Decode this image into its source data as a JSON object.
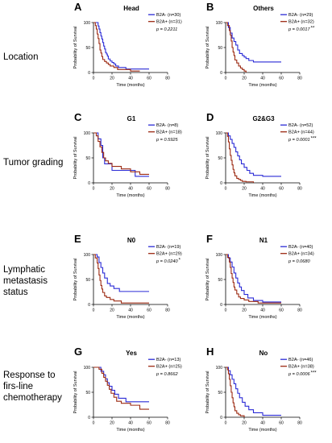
{
  "colors": {
    "negative": "#2b2bd6",
    "positive": "#9c2a12",
    "axis": "#000000"
  },
  "row_labels": [
    {
      "text": "Location"
    },
    {
      "text": "Tumor grading"
    },
    {
      "text": "Lymphatic metastasis status"
    },
    {
      "text": "Response to firs-line chemotherapy"
    }
  ],
  "chart_data": [
    {
      "panel": "A",
      "type": "line",
      "title": "Head",
      "xlabel": "Time (months)",
      "ylabel": "Probability of Survival",
      "xlim": [
        0,
        80
      ],
      "ylim": [
        0,
        100
      ],
      "xticks": [
        "0",
        "20",
        "40",
        "60",
        "80"
      ],
      "yticks": [
        "0",
        "50",
        "100"
      ],
      "p_value": "p = 0.2211",
      "significance": "",
      "series": [
        {
          "name": "B2A- (n=30)",
          "color": "#2b2bd6",
          "x": [
            0,
            3,
            5,
            6,
            7,
            8,
            9,
            10,
            11,
            12,
            13,
            14,
            15,
            16,
            18,
            20,
            22,
            24,
            27,
            30,
            35,
            40,
            50,
            60
          ],
          "y": [
            100,
            100,
            93,
            87,
            80,
            73,
            67,
            60,
            53,
            47,
            40,
            37,
            33,
            27,
            23,
            20,
            17,
            13,
            10,
            10,
            7,
            7,
            7,
            7
          ]
        },
        {
          "name": "B2A+ (n=31)",
          "color": "#9c2a12",
          "x": [
            0,
            2,
            3,
            4,
            5,
            6,
            7,
            8,
            9,
            10,
            12,
            14,
            16,
            18,
            22,
            26,
            30,
            40,
            50
          ],
          "y": [
            100,
            94,
            87,
            77,
            68,
            58,
            45,
            39,
            32,
            26,
            22,
            19,
            16,
            13,
            10,
            6,
            6,
            3,
            3
          ]
        }
      ]
    },
    {
      "panel": "B",
      "type": "line",
      "title": "Others",
      "xlabel": "Time (months)",
      "ylabel": "Probability of Survival",
      "xlim": [
        0,
        80
      ],
      "ylim": [
        0,
        100
      ],
      "xticks": [
        "0",
        "20",
        "40",
        "60",
        "80"
      ],
      "yticks": [
        "0",
        "50",
        "100"
      ],
      "p_value": "p = 0.0017",
      "significance": "**",
      "series": [
        {
          "name": "B2A- (n=29)",
          "color": "#2b2bd6",
          "x": [
            0,
            3,
            5,
            7,
            9,
            11,
            13,
            15,
            18,
            20,
            22,
            25,
            30,
            60
          ],
          "y": [
            100,
            90,
            79,
            69,
            62,
            55,
            45,
            38,
            34,
            31,
            28,
            24,
            21,
            21
          ]
        },
        {
          "name": "B2A+ (n=32)",
          "color": "#9c2a12",
          "x": [
            0,
            2,
            4,
            5,
            6,
            7,
            8,
            9,
            10,
            12,
            14,
            16,
            18,
            20,
            22
          ],
          "y": [
            100,
            94,
            84,
            75,
            63,
            50,
            41,
            34,
            25,
            19,
            13,
            9,
            6,
            3,
            0
          ]
        }
      ]
    },
    {
      "panel": "C",
      "type": "line",
      "title": "G1",
      "xlabel": "Time (months)",
      "ylabel": "Probability of Survival",
      "xlim": [
        0,
        80
      ],
      "ylim": [
        0,
        100
      ],
      "xticks": [
        "0",
        "20",
        "40",
        "60",
        "80"
      ],
      "yticks": [
        "0",
        "50",
        "100"
      ],
      "p_value": "p = 0.5925",
      "significance": "",
      "series": [
        {
          "name": "B2A- (n=8)",
          "color": "#2b2bd6",
          "x": [
            0,
            5,
            8,
            10,
            12,
            15,
            20,
            30,
            45,
            60
          ],
          "y": [
            100,
            88,
            75,
            50,
            38,
            38,
            25,
            25,
            13,
            13
          ]
        },
        {
          "name": "B2A+ (n=18)",
          "color": "#9c2a12",
          "x": [
            0,
            3,
            5,
            7,
            9,
            11,
            13,
            16,
            20,
            25,
            30,
            40,
            50,
            60
          ],
          "y": [
            100,
            94,
            83,
            72,
            61,
            50,
            44,
            39,
            33,
            33,
            28,
            22,
            17,
            17
          ]
        }
      ]
    },
    {
      "panel": "D",
      "type": "line",
      "title": "G2&G3",
      "xlabel": "Time (months)",
      "ylabel": "Probability of Survival",
      "xlim": [
        0,
        80
      ],
      "ylim": [
        0,
        100
      ],
      "xticks": [
        "0",
        "20",
        "40",
        "60",
        "80"
      ],
      "yticks": [
        "0",
        "50",
        "100"
      ],
      "p_value": "p = 0.0001",
      "significance": "***",
      "series": [
        {
          "name": "B2A- (n=52)",
          "color": "#2b2bd6",
          "x": [
            0,
            3,
            5,
            7,
            9,
            11,
            13,
            15,
            17,
            20,
            23,
            26,
            30,
            40,
            60
          ],
          "y": [
            100,
            94,
            87,
            79,
            71,
            62,
            54,
            46,
            38,
            31,
            25,
            19,
            15,
            13,
            13
          ]
        },
        {
          "name": "B2A+ (n=44)",
          "color": "#9c2a12",
          "x": [
            0,
            2,
            3,
            4,
            5,
            6,
            7,
            8,
            9,
            10,
            12,
            14,
            16,
            18,
            22,
            30
          ],
          "y": [
            100,
            93,
            82,
            68,
            55,
            45,
            36,
            27,
            20,
            14,
            9,
            7,
            5,
            3,
            2,
            0
          ]
        }
      ]
    },
    {
      "panel": "E",
      "type": "line",
      "title": "N0",
      "xlabel": "Time (months)",
      "ylabel": "Probability of Survival",
      "xlim": [
        0,
        80
      ],
      "ylim": [
        0,
        100
      ],
      "xticks": [
        "0",
        "20",
        "40",
        "60",
        "80"
      ],
      "yticks": [
        "0",
        "50",
        "100"
      ],
      "p_value": "p = 0.0240",
      "significance": "*",
      "series": [
        {
          "name": "B2A- (n=19)",
          "color": "#2b2bd6",
          "x": [
            0,
            4,
            6,
            8,
            10,
            12,
            15,
            18,
            22,
            28,
            35,
            60
          ],
          "y": [
            100,
            95,
            84,
            74,
            63,
            53,
            42,
            37,
            32,
            26,
            26,
            26
          ]
        },
        {
          "name": "B2A+ (n=29)",
          "color": "#9c2a12",
          "x": [
            0,
            2,
            4,
            5,
            6,
            7,
            8,
            9,
            10,
            12,
            14,
            18,
            22,
            30,
            60
          ],
          "y": [
            100,
            93,
            83,
            72,
            59,
            48,
            38,
            31,
            24,
            17,
            14,
            10,
            7,
            3,
            3
          ]
        }
      ]
    },
    {
      "panel": "F",
      "type": "line",
      "title": "N1",
      "xlabel": "Time (months)",
      "ylabel": "Probability of Survival",
      "xlim": [
        0,
        80
      ],
      "ylim": [
        0,
        100
      ],
      "xticks": [
        "0",
        "20",
        "40",
        "60",
        "80"
      ],
      "yticks": [
        "0",
        "50",
        "100"
      ],
      "p_value": "p = 0.0680",
      "significance": "",
      "series": [
        {
          "name": "B2A- (n=40)",
          "color": "#2b2bd6",
          "x": [
            0,
            3,
            5,
            7,
            9,
            11,
            13,
            15,
            17,
            20,
            24,
            30,
            40,
            60
          ],
          "y": [
            100,
            93,
            85,
            75,
            63,
            53,
            43,
            35,
            28,
            20,
            13,
            8,
            5,
            5
          ]
        },
        {
          "name": "B2A+ (n=34)",
          "color": "#9c2a12",
          "x": [
            0,
            2,
            4,
            5,
            6,
            7,
            8,
            9,
            10,
            12,
            14,
            16,
            20,
            25,
            35,
            60
          ],
          "y": [
            100,
            94,
            85,
            74,
            62,
            53,
            44,
            35,
            29,
            21,
            15,
            12,
            9,
            6,
            3,
            3
          ]
        }
      ]
    },
    {
      "panel": "G",
      "type": "line",
      "title": "Yes",
      "xlabel": "Time (months)",
      "ylabel": "Probability of Survival",
      "xlim": [
        0,
        80
      ],
      "ylim": [
        0,
        100
      ],
      "xticks": [
        "0",
        "20",
        "40",
        "60",
        "80"
      ],
      "yticks": [
        "0",
        "50",
        "100"
      ],
      "p_value": "p = 0.8662",
      "significance": "",
      "series": [
        {
          "name": "B2A- (n=13)",
          "color": "#2b2bd6",
          "x": [
            0,
            8,
            11,
            13,
            15,
            17,
            20,
            23,
            27,
            35,
            60
          ],
          "y": [
            100,
            92,
            85,
            77,
            69,
            62,
            54,
            46,
            38,
            31,
            31
          ]
        },
        {
          "name": "B2A+ (n=25)",
          "color": "#9c2a12",
          "x": [
            0,
            6,
            9,
            11,
            13,
            15,
            17,
            19,
            22,
            25,
            30,
            40,
            50,
            60
          ],
          "y": [
            100,
            96,
            88,
            80,
            72,
            64,
            56,
            48,
            40,
            32,
            28,
            24,
            16,
            16
          ]
        }
      ]
    },
    {
      "panel": "H",
      "type": "line",
      "title": "No",
      "xlabel": "Time (months)",
      "ylabel": "Probability of Survival",
      "xlim": [
        0,
        80
      ],
      "ylim": [
        0,
        100
      ],
      "xticks": [
        "0",
        "20",
        "40",
        "60",
        "80"
      ],
      "yticks": [
        "0",
        "50",
        "100"
      ],
      "p_value": "p = 0.0006",
      "significance": "***",
      "series": [
        {
          "name": "B2A- (n=46)",
          "color": "#2b2bd6",
          "x": [
            0,
            3,
            5,
            7,
            9,
            11,
            13,
            15,
            18,
            21,
            25,
            30,
            40,
            60
          ],
          "y": [
            100,
            93,
            85,
            76,
            67,
            57,
            48,
            39,
            30,
            22,
            15,
            9,
            4,
            4
          ]
        },
        {
          "name": "B2A+ (n=38)",
          "color": "#9c2a12",
          "x": [
            0,
            2,
            3,
            4,
            5,
            6,
            7,
            8,
            9,
            10,
            12,
            14,
            16,
            20
          ],
          "y": [
            100,
            95,
            87,
            76,
            63,
            50,
            39,
            29,
            21,
            13,
            8,
            5,
            3,
            0
          ]
        }
      ]
    }
  ]
}
